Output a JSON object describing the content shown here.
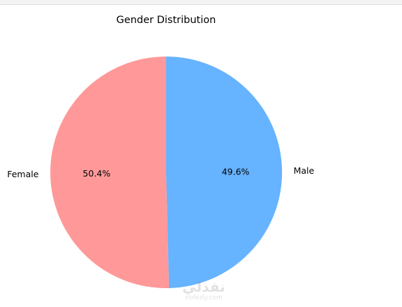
{
  "chart_data": {
    "type": "pie",
    "title": "Gender Distribution",
    "categories": [
      "Female",
      "Male"
    ],
    "values": [
      50.4,
      49.6
    ],
    "labels": [
      "50.4%",
      "49.6%"
    ],
    "colors": [
      "#ff9999",
      "#66b3ff"
    ],
    "start_angle_deg": 90,
    "direction": "counterclockwise"
  },
  "watermark": {
    "main": "نفذلي",
    "sub": "nofezly.com"
  }
}
